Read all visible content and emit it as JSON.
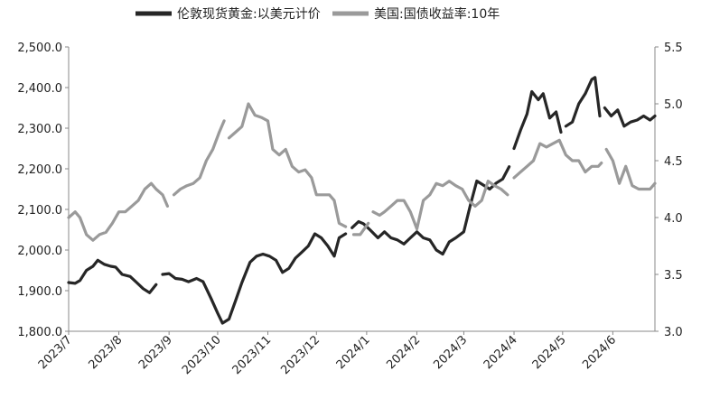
{
  "chart_data": {
    "type": "line",
    "title": "",
    "x_tick_labels": [
      "2023/7",
      "2023/8",
      "2023/9",
      "2023/10",
      "2023/11",
      "2023/12",
      "2024/1",
      "2024/2",
      "2024/3",
      "2024/4",
      "2024/5",
      "2024/6"
    ],
    "x_range": [
      "2023-07-01",
      "2024-06-27"
    ],
    "y_left": {
      "ylim": [
        1800,
        2500
      ],
      "ticks": [
        "1,800.0",
        "1,900.0",
        "2,000.0",
        "2,100.0",
        "2,200.0",
        "2,300.0",
        "2,400.0",
        "2,500.0"
      ]
    },
    "y_right": {
      "ylim": [
        3.0,
        5.5
      ],
      "ticks": [
        "3.0",
        "3.5",
        "4.0",
        "4.5",
        "5.0",
        "5.5"
      ]
    },
    "grid": false,
    "legend_position": "top",
    "series": [
      {
        "name": "伦敦现货黄金:以美元计价",
        "axis": "left",
        "color": "#262626",
        "points": [
          [
            "2023-07-01",
            1920
          ],
          [
            "2023-07-05",
            1918
          ],
          [
            "2023-07-08",
            1925
          ],
          [
            "2023-07-12",
            1950
          ],
          [
            "2023-07-16",
            1960
          ],
          [
            "2023-07-19",
            1975
          ],
          [
            "2023-07-23",
            1965
          ],
          [
            "2023-07-27",
            1960
          ],
          [
            "2023-07-30",
            1958
          ],
          [
            "2023-08-03",
            1940
          ],
          [
            "2023-08-08",
            1935
          ],
          [
            "2023-08-12",
            1920
          ],
          [
            "2023-08-16",
            1905
          ],
          [
            "2023-08-20",
            1895
          ],
          [
            "2023-08-24",
            1915
          ],
          null,
          [
            "2023-08-28",
            1940
          ],
          [
            "2023-09-01",
            1942
          ],
          [
            "2023-09-05",
            1930
          ],
          [
            "2023-09-09",
            1928
          ],
          [
            "2023-09-13",
            1922
          ],
          [
            "2023-09-18",
            1930
          ],
          [
            "2023-09-22",
            1922
          ],
          [
            "2023-09-27",
            1880
          ],
          [
            "2023-10-01",
            1845
          ],
          [
            "2023-10-04",
            1820
          ],
          [
            "2023-10-08",
            1830
          ],
          [
            "2023-10-12",
            1875
          ],
          [
            "2023-10-16",
            1920
          ],
          [
            "2023-10-21",
            1970
          ],
          [
            "2023-10-25",
            1985
          ],
          [
            "2023-10-29",
            1990
          ],
          [
            "2023-11-02",
            1985
          ],
          [
            "2023-11-06",
            1975
          ],
          [
            "2023-11-10",
            1945
          ],
          [
            "2023-11-14",
            1955
          ],
          [
            "2023-11-18",
            1980
          ],
          [
            "2023-11-22",
            1995
          ],
          [
            "2023-11-26",
            2010
          ],
          [
            "2023-11-30",
            2040
          ],
          [
            "2023-12-04",
            2030
          ],
          [
            "2023-12-08",
            2010
          ],
          [
            "2023-12-12",
            1985
          ],
          [
            "2023-12-15",
            2030
          ],
          [
            "2023-12-19",
            2040
          ],
          null,
          [
            "2023-12-23",
            2055
          ],
          [
            "2023-12-27",
            2070
          ],
          [
            "2023-12-30",
            2065
          ],
          [
            "2024-01-03",
            2050
          ],
          [
            "2024-01-08",
            2030
          ],
          [
            "2024-01-12",
            2045
          ],
          [
            "2024-01-16",
            2030
          ],
          [
            "2024-01-20",
            2025
          ],
          [
            "2024-01-24",
            2015
          ],
          [
            "2024-01-28",
            2030
          ],
          [
            "2024-02-01",
            2045
          ],
          [
            "2024-02-05",
            2030
          ],
          [
            "2024-02-09",
            2025
          ],
          [
            "2024-02-13",
            2000
          ],
          [
            "2024-02-17",
            1990
          ],
          [
            "2024-02-21",
            2020
          ],
          [
            "2024-02-25",
            2030
          ],
          [
            "2024-03-01",
            2045
          ],
          [
            "2024-03-05",
            2110
          ],
          [
            "2024-03-09",
            2170
          ],
          [
            "2024-03-13",
            2160
          ],
          [
            "2024-03-17",
            2150
          ],
          [
            "2024-03-21",
            2165
          ],
          [
            "2024-03-25",
            2175
          ],
          [
            "2024-03-29",
            2205
          ],
          null,
          [
            "2024-04-01",
            2250
          ],
          [
            "2024-04-05",
            2295
          ],
          [
            "2024-04-09",
            2335
          ],
          [
            "2024-04-12",
            2390
          ],
          [
            "2024-04-16",
            2370
          ],
          [
            "2024-04-19",
            2385
          ],
          [
            "2024-04-23",
            2325
          ],
          [
            "2024-04-27",
            2340
          ],
          [
            "2024-04-30",
            2290
          ],
          null,
          [
            "2024-05-03",
            2305
          ],
          [
            "2024-05-07",
            2315
          ],
          [
            "2024-05-11",
            2360
          ],
          [
            "2024-05-15",
            2385
          ],
          [
            "2024-05-19",
            2420
          ],
          [
            "2024-05-21",
            2425
          ],
          [
            "2024-05-24",
            2330
          ],
          null,
          [
            "2024-05-27",
            2350
          ],
          [
            "2024-05-31",
            2330
          ],
          [
            "2024-06-04",
            2345
          ],
          [
            "2024-06-08",
            2305
          ],
          [
            "2024-06-12",
            2315
          ],
          [
            "2024-06-16",
            2320
          ],
          [
            "2024-06-20",
            2330
          ],
          [
            "2024-06-24",
            2320
          ],
          [
            "2024-06-27",
            2330
          ]
        ]
      },
      {
        "name": "美国:国债收益率:10年",
        "axis": "right",
        "color": "#9a9a9a",
        "points": [
          [
            "2023-07-01",
            4.0
          ],
          [
            "2023-07-05",
            4.05
          ],
          [
            "2023-07-08",
            4.0
          ],
          [
            "2023-07-12",
            3.85
          ],
          [
            "2023-07-16",
            3.8
          ],
          [
            "2023-07-20",
            3.85
          ],
          [
            "2023-07-24",
            3.87
          ],
          [
            "2023-07-28",
            3.95
          ],
          [
            "2023-08-01",
            4.05
          ],
          [
            "2023-08-05",
            4.05
          ],
          [
            "2023-08-09",
            4.1
          ],
          [
            "2023-08-13",
            4.15
          ],
          [
            "2023-08-17",
            4.25
          ],
          [
            "2023-08-21",
            4.3
          ],
          [
            "2023-08-24",
            4.25
          ],
          [
            "2023-08-28",
            4.2
          ],
          [
            "2023-08-31",
            4.1
          ],
          null,
          [
            "2023-09-04",
            4.2
          ],
          [
            "2023-09-08",
            4.25
          ],
          [
            "2023-09-12",
            4.28
          ],
          [
            "2023-09-16",
            4.3
          ],
          [
            "2023-09-20",
            4.35
          ],
          [
            "2023-09-24",
            4.5
          ],
          [
            "2023-09-28",
            4.6
          ],
          [
            "2023-10-02",
            4.75
          ],
          [
            "2023-10-05",
            4.85
          ],
          null,
          [
            "2023-10-08",
            4.7
          ],
          [
            "2023-10-12",
            4.75
          ],
          [
            "2023-10-16",
            4.8
          ],
          [
            "2023-10-20",
            5.0
          ],
          [
            "2023-10-24",
            4.9
          ],
          [
            "2023-10-28",
            4.88
          ],
          [
            "2023-11-01",
            4.85
          ],
          [
            "2023-11-04",
            4.6
          ],
          [
            "2023-11-08",
            4.55
          ],
          [
            "2023-11-12",
            4.6
          ],
          [
            "2023-11-16",
            4.45
          ],
          [
            "2023-11-20",
            4.4
          ],
          [
            "2023-11-24",
            4.42
          ],
          [
            "2023-11-28",
            4.35
          ],
          [
            "2023-12-01",
            4.2
          ],
          [
            "2023-12-05",
            4.2
          ],
          [
            "2023-12-09",
            4.2
          ],
          [
            "2023-12-12",
            4.15
          ],
          [
            "2023-12-15",
            3.95
          ],
          [
            "2023-12-19",
            3.92
          ],
          null,
          [
            "2023-12-24",
            3.85
          ],
          [
            "2023-12-28",
            3.85
          ],
          [
            "2024-01-02",
            3.95
          ],
          null,
          [
            "2024-01-05",
            4.05
          ],
          [
            "2024-01-09",
            4.02
          ],
          [
            "2024-01-12",
            4.05
          ],
          [
            "2024-01-16",
            4.1
          ],
          [
            "2024-01-20",
            4.15
          ],
          [
            "2024-01-24",
            4.15
          ],
          [
            "2024-01-28",
            4.05
          ],
          [
            "2024-02-01",
            3.9
          ],
          [
            "2024-02-05",
            4.15
          ],
          [
            "2024-02-09",
            4.2
          ],
          [
            "2024-02-13",
            4.3
          ],
          [
            "2024-02-17",
            4.28
          ],
          [
            "2024-02-21",
            4.32
          ],
          [
            "2024-02-25",
            4.28
          ],
          [
            "2024-02-29",
            4.25
          ],
          [
            "2024-03-04",
            4.15
          ],
          [
            "2024-03-08",
            4.1
          ],
          [
            "2024-03-12",
            4.15
          ],
          [
            "2024-03-16",
            4.32
          ],
          [
            "2024-03-20",
            4.28
          ],
          [
            "2024-03-24",
            4.25
          ],
          [
            "2024-03-28",
            4.2
          ],
          null,
          [
            "2024-04-01",
            4.35
          ],
          [
            "2024-04-05",
            4.4
          ],
          [
            "2024-04-09",
            4.45
          ],
          [
            "2024-04-13",
            4.5
          ],
          [
            "2024-04-17",
            4.65
          ],
          [
            "2024-04-21",
            4.62
          ],
          [
            "2024-04-25",
            4.65
          ],
          [
            "2024-04-29",
            4.68
          ],
          [
            "2024-05-03",
            4.55
          ],
          [
            "2024-05-07",
            4.5
          ],
          [
            "2024-05-11",
            4.5
          ],
          [
            "2024-05-15",
            4.4
          ],
          [
            "2024-05-19",
            4.45
          ],
          [
            "2024-05-23",
            4.45
          ],
          [
            "2024-05-25",
            4.48
          ],
          null,
          [
            "2024-05-28",
            4.6
          ],
          [
            "2024-06-01",
            4.5
          ],
          [
            "2024-06-05",
            4.3
          ],
          [
            "2024-06-09",
            4.45
          ],
          [
            "2024-06-13",
            4.28
          ],
          [
            "2024-06-17",
            4.25
          ],
          [
            "2024-06-21",
            4.25
          ],
          [
            "2024-06-24",
            4.25
          ],
          [
            "2024-06-27",
            4.3
          ]
        ]
      }
    ]
  }
}
